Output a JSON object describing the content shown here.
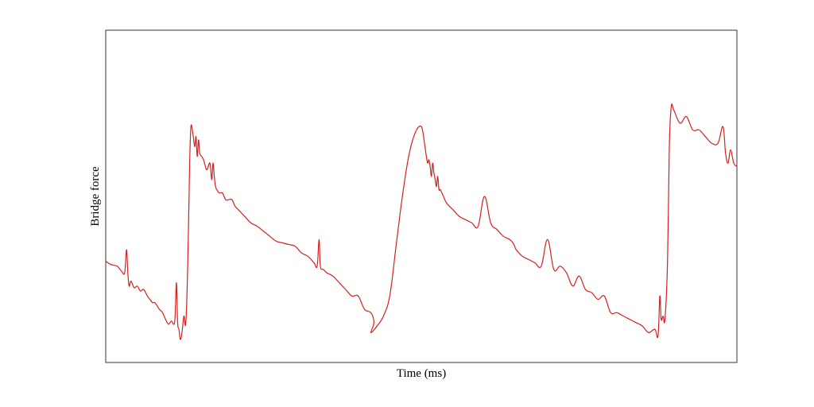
{
  "chart_data": {
    "type": "line",
    "title": "",
    "xlabel": "Time (ms)",
    "ylabel": "Bridge force",
    "xlim": [
      0,
      1
    ],
    "ylim": [
      0,
      1
    ],
    "grid": false,
    "legend": "none",
    "series": [
      {
        "color": "#d62020",
        "x": [
          0.0,
          0.008,
          0.018,
          0.025,
          0.03,
          0.033,
          0.035,
          0.037,
          0.04,
          0.045,
          0.05,
          0.055,
          0.06,
          0.066,
          0.07,
          0.074,
          0.078,
          0.085,
          0.09,
          0.096,
          0.1,
          0.104,
          0.108,
          0.11,
          0.112,
          0.114,
          0.116,
          0.118,
          0.12,
          0.122,
          0.124,
          0.127,
          0.13,
          0.133,
          0.135,
          0.138,
          0.141,
          0.143,
          0.145,
          0.147,
          0.149,
          0.152,
          0.155,
          0.16,
          0.165,
          0.168,
          0.17,
          0.172,
          0.174,
          0.176,
          0.18,
          0.185,
          0.19,
          0.195,
          0.2,
          0.205,
          0.21,
          0.215,
          0.22,
          0.23,
          0.24,
          0.25,
          0.26,
          0.27,
          0.28,
          0.29,
          0.3,
          0.31,
          0.32,
          0.33,
          0.335,
          0.338,
          0.34,
          0.345,
          0.35,
          0.36,
          0.37,
          0.38,
          0.39,
          0.4,
          0.41,
          0.42,
          0.425,
          0.42,
          0.43,
          0.44,
          0.45,
          0.46,
          0.47,
          0.48,
          0.49,
          0.5,
          0.505,
          0.508,
          0.51,
          0.512,
          0.514,
          0.516,
          0.518,
          0.52,
          0.522,
          0.524,
          0.526,
          0.528,
          0.53,
          0.535,
          0.54,
          0.55,
          0.56,
          0.57,
          0.58,
          0.59,
          0.6,
          0.61,
          0.62,
          0.63,
          0.64,
          0.645,
          0.648,
          0.65,
          0.66,
          0.67,
          0.68,
          0.69,
          0.7,
          0.71,
          0.72,
          0.73,
          0.74,
          0.75,
          0.76,
          0.77,
          0.78,
          0.79,
          0.8,
          0.81,
          0.82,
          0.83,
          0.84,
          0.85,
          0.86,
          0.87,
          0.875,
          0.878,
          0.88,
          0.883,
          0.886,
          0.89,
          0.893,
          0.896,
          0.9,
          0.91,
          0.92,
          0.93,
          0.94,
          0.95,
          0.96,
          0.97,
          0.978,
          0.982,
          0.986,
          0.99,
          0.995,
          1.0
        ],
        "y": [
          0.305,
          0.295,
          0.29,
          0.275,
          0.27,
          0.34,
          0.27,
          0.23,
          0.245,
          0.225,
          0.23,
          0.215,
          0.22,
          0.2,
          0.19,
          0.18,
          0.18,
          0.16,
          0.15,
          0.125,
          0.115,
          0.125,
          0.115,
          0.14,
          0.24,
          0.12,
          0.1,
          0.07,
          0.08,
          0.11,
          0.14,
          0.12,
          0.3,
          0.6,
          0.71,
          0.69,
          0.65,
          0.68,
          0.62,
          0.67,
          0.63,
          0.62,
          0.61,
          0.58,
          0.6,
          0.55,
          0.6,
          0.56,
          0.53,
          0.52,
          0.51,
          0.51,
          0.49,
          0.49,
          0.49,
          0.47,
          0.46,
          0.45,
          0.44,
          0.42,
          0.41,
          0.395,
          0.38,
          0.365,
          0.36,
          0.355,
          0.35,
          0.33,
          0.32,
          0.3,
          0.29,
          0.37,
          0.29,
          0.28,
          0.27,
          0.26,
          0.24,
          0.22,
          0.2,
          0.2,
          0.16,
          0.15,
          0.12,
          0.09,
          0.11,
          0.14,
          0.2,
          0.35,
          0.5,
          0.62,
          0.69,
          0.71,
          0.66,
          0.62,
          0.6,
          0.61,
          0.59,
          0.56,
          0.6,
          0.57,
          0.55,
          0.53,
          0.56,
          0.52,
          0.52,
          0.5,
          0.48,
          0.46,
          0.44,
          0.43,
          0.42,
          0.41,
          0.5,
          0.42,
          0.4,
          0.38,
          0.37,
          0.36,
          0.35,
          0.34,
          0.32,
          0.31,
          0.3,
          0.29,
          0.37,
          0.28,
          0.29,
          0.27,
          0.23,
          0.26,
          0.22,
          0.21,
          0.19,
          0.2,
          0.15,
          0.15,
          0.14,
          0.13,
          0.12,
          0.11,
          0.09,
          0.1,
          0.08,
          0.2,
          0.13,
          0.14,
          0.13,
          0.3,
          0.65,
          0.77,
          0.76,
          0.72,
          0.74,
          0.7,
          0.7,
          0.68,
          0.66,
          0.66,
          0.71,
          0.63,
          0.6,
          0.64,
          0.6,
          0.59
        ]
      }
    ]
  }
}
